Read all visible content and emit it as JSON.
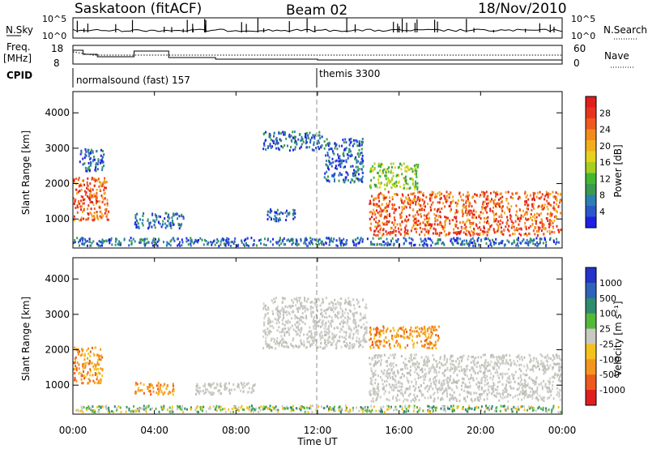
{
  "header": {
    "station": "Saskatoon (fitACF)",
    "beam": "Beam 02",
    "date": "18/Nov/2010"
  },
  "status_panels": {
    "nsky_label": "N.Sky",
    "nsearch_label": "N.Search",
    "nsky_ticks": [
      "10^5",
      "10^0"
    ],
    "nsearch_ticks": [
      "10^5",
      "10^0"
    ],
    "freq_label_top": "Freq.",
    "freq_label_bottom": "[MHz]",
    "freq_ticks": [
      "18",
      "8"
    ],
    "nave_label": "Nave",
    "nave_ticks": [
      "60",
      "0"
    ],
    "cpid_label": "CPID",
    "cpid_entries": [
      {
        "name": "normalsound (fast) 157",
        "start_hour": 0
      },
      {
        "name": "themis 3300",
        "start_hour": 12
      }
    ]
  },
  "x_axis": {
    "label": "Time UT",
    "tick_labels": [
      "00:00",
      "04:00",
      "08:00",
      "12:00",
      "16:00",
      "20:00",
      "00:00"
    ],
    "range_hours": [
      0,
      24
    ]
  },
  "chart_data": [
    {
      "type": "heatmap",
      "panel": "power",
      "ylabel": "Slant Range [km]",
      "yticks": [
        "1000",
        "2000",
        "3000",
        "4000"
      ],
      "ylim": [
        180,
        4600
      ],
      "xlim": [
        0,
        24
      ],
      "colorbar_label": "Power [dB]",
      "colorbar_ticks": [
        "4",
        "8",
        "12",
        "16",
        "20",
        "24",
        "28"
      ],
      "colorbar_colors": [
        "#1f1fe6",
        "#2b57c8",
        "#2b80b0",
        "#3a9a50",
        "#44b832",
        "#a6cf20",
        "#e6d21e",
        "#f3ae1c",
        "#f38a1c",
        "#f0591d",
        "#e8341e",
        "#e01e1e"
      ],
      "regions": [
        {
          "t": [
            0.0,
            1.8
          ],
          "r": [
            900,
            2200
          ],
          "level": "high"
        },
        {
          "t": [
            0.3,
            1.6
          ],
          "r": [
            2300,
            3000
          ],
          "level": "low"
        },
        {
          "t": [
            3.0,
            5.5
          ],
          "r": [
            700,
            1200
          ],
          "level": "low"
        },
        {
          "t": [
            9.5,
            11.0
          ],
          "r": [
            900,
            1300
          ],
          "level": "low"
        },
        {
          "t": [
            9.3,
            12.3
          ],
          "r": [
            2900,
            3500
          ],
          "level": "low"
        },
        {
          "t": [
            12.3,
            14.3
          ],
          "r": [
            2000,
            3300
          ],
          "level": "low"
        },
        {
          "t": [
            14.5,
            24.0
          ],
          "r": [
            500,
            1800
          ],
          "level": "high"
        },
        {
          "t": [
            14.5,
            17.0
          ],
          "r": [
            1800,
            2600
          ],
          "level": "mid"
        },
        {
          "t": [
            0.0,
            24.0
          ],
          "r": [
            200,
            500
          ],
          "level": "low"
        }
      ]
    },
    {
      "type": "heatmap",
      "panel": "velocity",
      "ylabel": "Slant Range [km]",
      "yticks": [
        "1000",
        "2000",
        "3000",
        "4000"
      ],
      "ylim": [
        180,
        4600
      ],
      "xlim": [
        0,
        24
      ],
      "colorbar_label": "Velocity [m s⁻¹]",
      "colorbar_ticks": [
        "1000",
        "500",
        "100",
        "25",
        "-25",
        "-100",
        "-500",
        "-1000"
      ],
      "colorbar_colors": [
        "#2433c8",
        "#2f63b8",
        "#2f8a6e",
        "#55b83a",
        "#c9c9c2",
        "#f4c21c",
        "#f3961c",
        "#ee5a1d",
        "#e01e1e"
      ],
      "regions": [
        {
          "t": [
            0.0,
            1.5
          ],
          "r": [
            1000,
            2100
          ],
          "level": "neg"
        },
        {
          "t": [
            3.0,
            5.0
          ],
          "r": [
            700,
            1100
          ],
          "level": "neg"
        },
        {
          "t": [
            6.0,
            9.0
          ],
          "r": [
            700,
            1100
          ],
          "level": "zero"
        },
        {
          "t": [
            9.3,
            14.5
          ],
          "r": [
            2000,
            3500
          ],
          "level": "zero"
        },
        {
          "t": [
            14.5,
            24.0
          ],
          "r": [
            500,
            1900
          ],
          "level": "zero"
        },
        {
          "t": [
            14.5,
            18.0
          ],
          "r": [
            2000,
            2700
          ],
          "level": "neg"
        },
        {
          "t": [
            0.0,
            24.0
          ],
          "r": [
            200,
            450
          ],
          "level": "pos"
        }
      ]
    }
  ]
}
